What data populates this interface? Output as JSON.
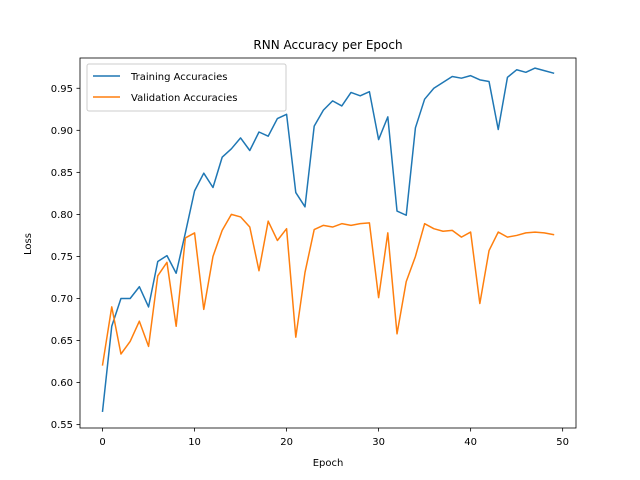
{
  "chart_data": {
    "type": "line",
    "title": "RNN Accuracy per Epoch",
    "xlabel": "Epoch",
    "ylabel": "Loss",
    "xlim": [
      -2.45,
      51.45
    ],
    "ylim": [
      0.546,
      0.986
    ],
    "xticks": [
      0,
      10,
      20,
      30,
      40,
      50
    ],
    "yticks": [
      0.55,
      0.6,
      0.65,
      0.7,
      0.75,
      0.8,
      0.85,
      0.9,
      0.95
    ],
    "ytick_labels": [
      "0.55",
      "0.60",
      "0.65",
      "0.70",
      "0.75",
      "0.80",
      "0.85",
      "0.90",
      "0.95"
    ],
    "grid": false,
    "legend_position": "upper-left",
    "series": [
      {
        "name": "Training Accuracies",
        "color": "#1f77b4",
        "values": [
          0.566,
          0.667,
          0.7,
          0.7,
          0.714,
          0.69,
          0.744,
          0.751,
          0.73,
          0.778,
          0.828,
          0.849,
          0.832,
          0.868,
          0.878,
          0.891,
          0.876,
          0.898,
          0.893,
          0.914,
          0.919,
          0.826,
          0.809,
          0.905,
          0.924,
          0.935,
          0.929,
          0.945,
          0.941,
          0.946,
          0.889,
          0.916,
          0.804,
          0.799,
          0.903,
          0.937,
          0.95,
          0.957,
          0.964,
          0.962,
          0.965,
          0.96,
          0.958,
          0.901,
          0.963,
          0.972,
          0.969,
          0.974,
          0.971,
          0.968
        ]
      },
      {
        "name": "Validation Accuracies",
        "color": "#ff7f0e",
        "values": [
          0.621,
          0.69,
          0.634,
          0.649,
          0.673,
          0.643,
          0.727,
          0.743,
          0.667,
          0.772,
          0.778,
          0.687,
          0.75,
          0.781,
          0.8,
          0.797,
          0.785,
          0.733,
          0.792,
          0.769,
          0.783,
          0.654,
          0.731,
          0.782,
          0.787,
          0.785,
          0.789,
          0.787,
          0.789,
          0.79,
          0.701,
          0.778,
          0.658,
          0.72,
          0.75,
          0.789,
          0.783,
          0.78,
          0.781,
          0.773,
          0.779,
          0.694,
          0.757,
          0.779,
          0.773,
          0.775,
          0.778,
          0.779,
          0.778,
          0.776
        ]
      }
    ]
  }
}
